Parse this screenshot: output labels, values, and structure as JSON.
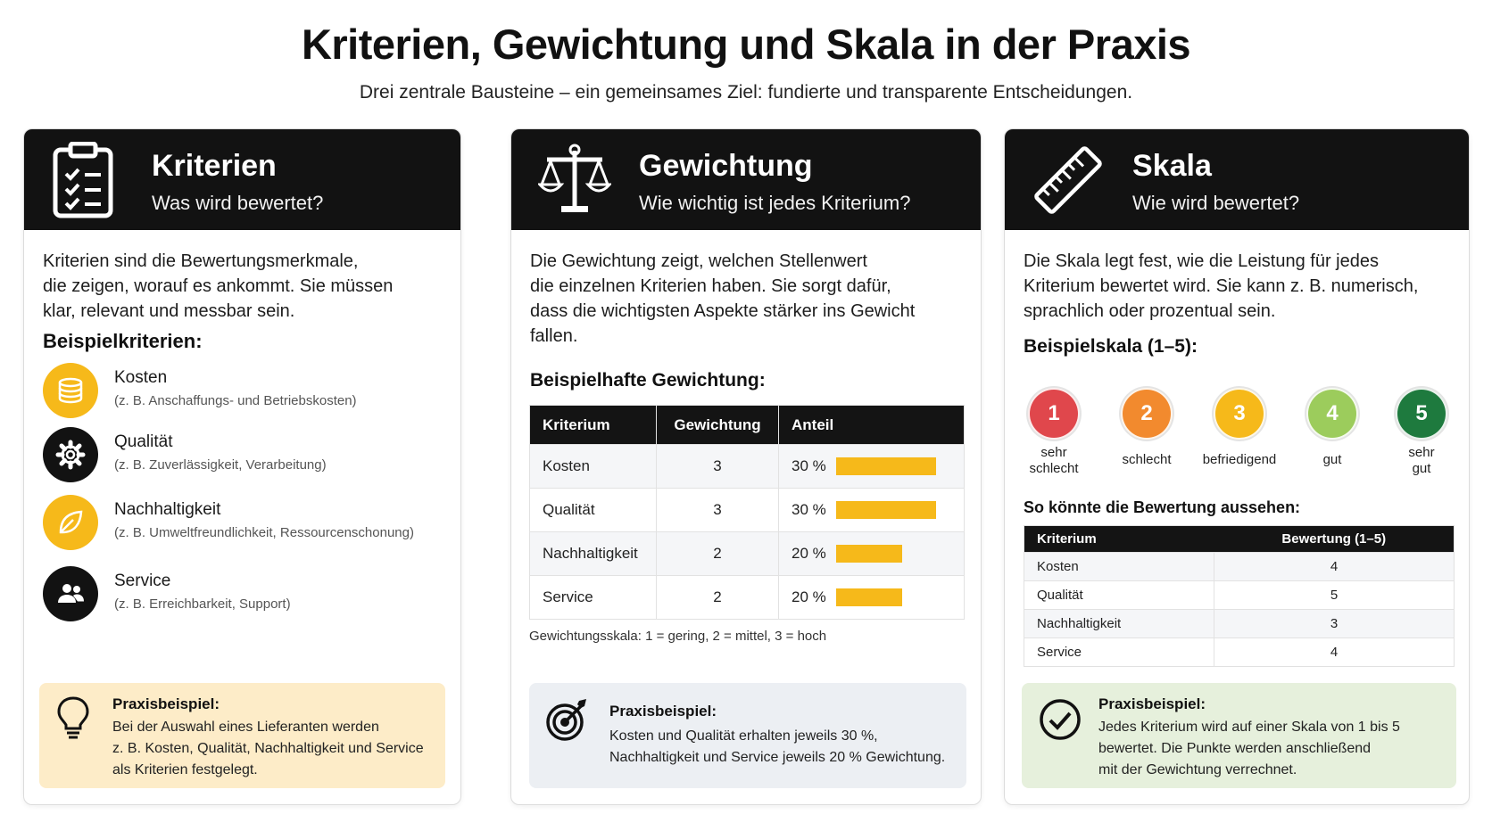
{
  "header": {
    "title": "Kriterien, Gewichtung und Skala in der Praxis",
    "subtitle": "Drei zentrale Bausteine – ein gemeinsames Ziel: fundierte und transparente Entscheidungen."
  },
  "colors": {
    "header_bg": "#121212",
    "accent_yellow": "#f6b91a",
    "tip1_bg": "#fdecc8",
    "tip2_bg": "#eceff3",
    "tip3_bg": "#e6f0dc"
  },
  "cards": [
    {
      "icon": "clipboard-checklist-icon",
      "title": "Kriterien",
      "subtitle": "Was wird bewertet?",
      "intro": [
        "Kriterien sind die Bewertungsmerkmale,",
        "die zeigen, worauf es ankommt. Sie müssen",
        "klar, relevant und messbar sein."
      ],
      "section_title": "Beispielkriterien:",
      "items": [
        {
          "icon": "coins-icon",
          "name": "Kosten",
          "desc": "(z. B. Anschaffungs- und Betriebskosten)",
          "color": "#f6b91a"
        },
        {
          "icon": "gear-icon",
          "name": "Qualität",
          "desc": "(z. B. Zuverlässigkeit, Verarbeitung)",
          "color": "#121212"
        },
        {
          "icon": "leaf-icon",
          "name": "Nachhaltigkeit",
          "desc": "(z. B. Umweltfreundlichkeit, Ressourcenschonung)",
          "color": "#f6b91a"
        },
        {
          "icon": "people-icon",
          "name": "Service",
          "desc": "(z. B. Erreichbarkeit, Support)",
          "color": "#121212"
        }
      ],
      "tip": {
        "icon": "lightbulb-icon",
        "title": "Praxisbeispiel:",
        "text": [
          "Bei der Auswahl eines Lieferanten werden",
          "z. B. Kosten, Qualität, Nachhaltigkeit und Service",
          "als Kriterien festgelegt."
        ]
      }
    },
    {
      "icon": "balance-scale-icon",
      "title": "Gewichtung",
      "subtitle": "Wie wichtig ist jedes Kriterium?",
      "intro": [
        "Die Gewichtung zeigt, welchen Stellenwert",
        "die einzelnen Kriterien haben. Sie sorgt dafür,",
        "dass die wichtigsten Aspekte stärker ins Gewicht",
        "fallen."
      ],
      "section_title": "Beispielhafte Gewichtung:",
      "table": {
        "headers": [
          "Kriterium",
          "Gewichtung",
          "Anteil"
        ],
        "rows": [
          {
            "criterion": "Kosten",
            "weight": "3",
            "share_label": "30 %",
            "share": 0.3
          },
          {
            "criterion": "Qualität",
            "weight": "3",
            "share_label": "30 %",
            "share": 0.3
          },
          {
            "criterion": "Nachhaltigkeit",
            "weight": "2",
            "share_label": "20 %",
            "share": 0.2
          },
          {
            "criterion": "Service",
            "weight": "2",
            "share_label": "20 %",
            "share": 0.2
          }
        ]
      },
      "scale_note": "Gewichtungsskala: 1 = gering, 2 = mittel, 3 = hoch",
      "tip": {
        "icon": "target-icon",
        "title": "Praxisbeispiel:",
        "text": [
          "Kosten und Qualität erhalten jeweils 30 %,",
          "Nachhaltigkeit und Service jeweils 20 % Gewichtung."
        ]
      }
    },
    {
      "icon": "ruler-icon",
      "title": "Skala",
      "subtitle": "Wie wird bewertet?",
      "intro": [
        "Die Skala legt fest, wie die Leistung für jedes",
        "Kriterium bewertet wird. Sie kann z. B. numerisch,",
        "sprachlich oder prozentual sein."
      ],
      "section_title": "Beispielskala (1–5):",
      "scale": [
        {
          "value": "1",
          "label": [
            "sehr",
            "schlecht"
          ],
          "color": "#e0474c"
        },
        {
          "value": "2",
          "label": [
            "schlecht"
          ],
          "color": "#f28a2e"
        },
        {
          "value": "3",
          "label": [
            "befriedigend"
          ],
          "color": "#f6b91a"
        },
        {
          "value": "4",
          "label": [
            "gut"
          ],
          "color": "#9ccc5c"
        },
        {
          "value": "5",
          "label": [
            "sehr",
            "gut"
          ],
          "color": "#1e7a3e"
        }
      ],
      "rating_title": "So könnte die Bewertung aussehen:",
      "rating_table": {
        "headers": [
          "Kriterium",
          "Bewertung (1–5)"
        ],
        "rows": [
          {
            "criterion": "Kosten",
            "rating": "4"
          },
          {
            "criterion": "Qualität",
            "rating": "5"
          },
          {
            "criterion": "Nachhaltigkeit",
            "rating": "3"
          },
          {
            "criterion": "Service",
            "rating": "4"
          }
        ]
      },
      "tip": {
        "icon": "check-circle-icon",
        "title": "Praxisbeispiel:",
        "text": [
          "Jedes Kriterium wird auf einer Skala von 1 bis 5",
          "bewertet. Die Punkte werden anschließend",
          "mit der Gewichtung verrechnet."
        ]
      }
    }
  ]
}
